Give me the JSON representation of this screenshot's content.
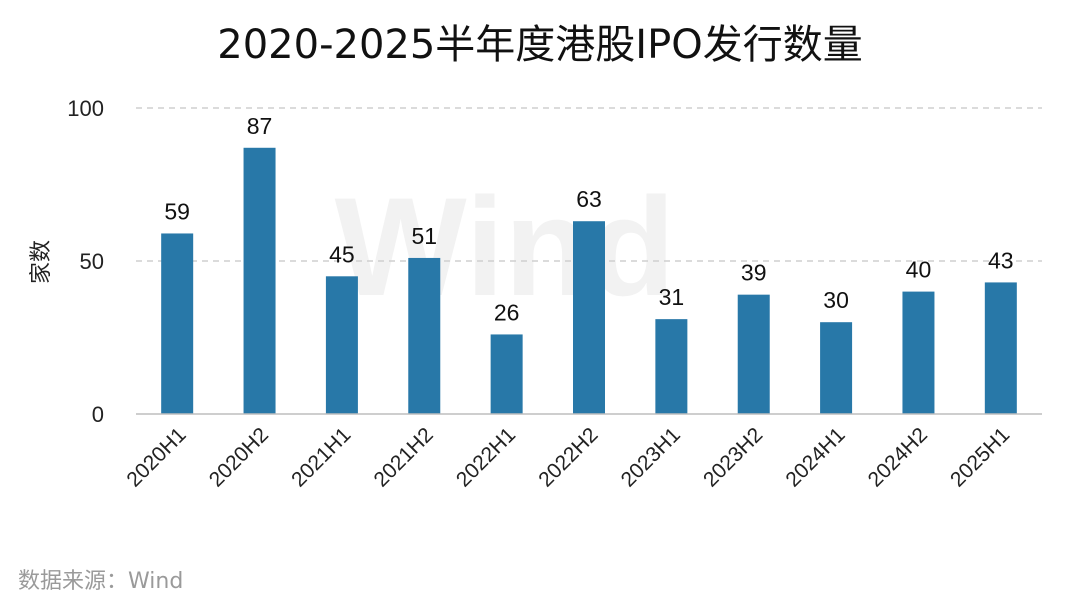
{
  "chart_data": {
    "type": "bar",
    "title": "2020-2025半年度港股IPO发行数量",
    "ylabel": "家数",
    "xlabel": "",
    "ylim": [
      0,
      100
    ],
    "yticks": [
      0,
      50,
      100
    ],
    "grid": "dashed horizontal",
    "categories": [
      "2020H1",
      "2020H2",
      "2021H1",
      "2021H2",
      "2022H1",
      "2022H2",
      "2023H1",
      "2023H2",
      "2024H1",
      "2024H2",
      "2025H1"
    ],
    "values": [
      59,
      87,
      45,
      51,
      26,
      63,
      31,
      39,
      30,
      40,
      43
    ],
    "bar_color": "#2878a8"
  },
  "source": "数据来源：Wind",
  "watermark": "Wind"
}
